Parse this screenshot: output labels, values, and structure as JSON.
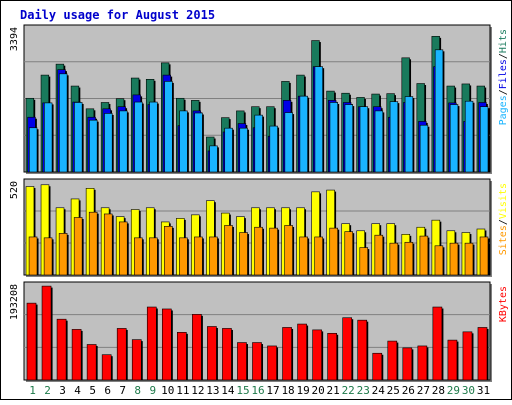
{
  "chart_data": {
    "type": "bar",
    "title": "Daily usage for August 2015",
    "days": [
      "1",
      "2",
      "3",
      "4",
      "5",
      "6",
      "7",
      "8",
      "9",
      "10",
      "11",
      "12",
      "13",
      "14",
      "15",
      "16",
      "17",
      "18",
      "19",
      "20",
      "21",
      "22",
      "23",
      "24",
      "25",
      "26",
      "27",
      "28",
      "29",
      "30",
      "31"
    ],
    "weekend_days": [
      "1",
      "2",
      "8",
      "9",
      "15",
      "16",
      "22",
      "23",
      "29",
      "30"
    ],
    "colors": {
      "title": "#0000cc",
      "background": "#ffffff",
      "plot_background": "#c0c0c0",
      "hits": "#197a5c",
      "files": "#0000e6",
      "pages": "#19b4ff",
      "visits": "#ffff00",
      "sites": "#ff9900",
      "kbytes": "#ff0000",
      "weekday_label": "#000000",
      "weekend_label": "#1e7a4a"
    },
    "panels": [
      {
        "id": "hits_files_pages",
        "max_label": "3394",
        "ylim": [
          0,
          3394
        ],
        "legend": [
          {
            "text": "Pages",
            "color": "#19b4ff"
          },
          {
            "text": "/",
            "color": "#000000"
          },
          {
            "text": "Files",
            "color": "#0000e6"
          },
          {
            "text": "/",
            "color": "#000000"
          },
          {
            "text": "Hits",
            "color": "#197a5c"
          }
        ],
        "series": [
          {
            "name": "Hits",
            "color": "#197a5c",
            "values": [
              1750,
              2300,
              2560,
              2040,
              1500,
              1650,
              1740,
              2230,
              2200,
              2590,
              1750,
              1700,
              830,
              1290,
              1450,
              1550,
              1550,
              2150,
              2300,
              3120,
              1920,
              1870,
              1770,
              1850,
              1860,
              2710,
              2100,
              3220,
              2040,
              2090,
              2040
            ]
          },
          {
            "name": "Files",
            "color": "#0000e6",
            "values": [
              1300,
              1640,
              2430,
              1660,
              1300,
              1500,
              1550,
              1830,
              1600,
              2300,
              1100,
              1450,
              500,
              950,
              1150,
              1050,
              850,
              1700,
              1800,
              2500,
              1700,
              1650,
              1550,
              1550,
              1300,
              1650,
              1200,
              2500,
              1640,
              1200,
              1650
            ]
          },
          {
            "name": "Pages",
            "color": "#19b4ff",
            "values": [
              1050,
              1640,
              2330,
              1650,
              1230,
              1390,
              1450,
              1660,
              1660,
              2150,
              1450,
              1400,
              620,
              1040,
              1040,
              1350,
              1090,
              1410,
              1800,
              2500,
              1650,
              1600,
              1550,
              1450,
              1670,
              1790,
              1110,
              2900,
              1600,
              1680,
              1550
            ]
          }
        ]
      },
      {
        "id": "visits_sites",
        "max_label": "520",
        "ylim": [
          0,
          520
        ],
        "legend": [
          {
            "text": "Sites",
            "color": "#ff9900"
          },
          {
            "text": "/",
            "color": "#000000"
          },
          {
            "text": "Visits",
            "color": "#ffff00"
          }
        ],
        "series": [
          {
            "name": "Visits",
            "color": "#ffff00",
            "values": [
              500,
              510,
              380,
              430,
              490,
              380,
              330,
              370,
              380,
              300,
              320,
              340,
              420,
              350,
              330,
              380,
              380,
              380,
              380,
              470,
              480,
              290,
              250,
              290,
              290,
              230,
              270,
              310,
              250,
              240,
              260
            ]
          },
          {
            "name": "Sites",
            "color": "#ff9900",
            "values": [
              215,
              210,
              235,
              325,
              355,
              345,
              300,
              210,
              210,
              275,
              210,
              215,
              215,
              280,
              240,
              270,
              265,
              280,
              215,
              215,
              265,
              245,
              155,
              225,
              180,
              185,
              220,
              165,
              180,
              180,
              215
            ]
          }
        ]
      },
      {
        "id": "kbytes",
        "max_label": "193208",
        "ylim": [
          0,
          193208
        ],
        "legend": [
          {
            "text": "KBytes",
            "color": "#ff0000"
          }
        ],
        "series": [
          {
            "name": "KBytes",
            "color": "#ff0000",
            "values": [
              158000,
              193000,
              125000,
              104000,
              73000,
              52000,
              106000,
              83000,
              150000,
              146000,
              98000,
              135000,
              110000,
              106000,
              77000,
              77000,
              70000,
              108000,
              115000,
              103000,
              96000,
              128000,
              123000,
              55000,
              80000,
              66000,
              70000,
              150000,
              82000,
              99000,
              108000
            ]
          }
        ]
      }
    ]
  }
}
